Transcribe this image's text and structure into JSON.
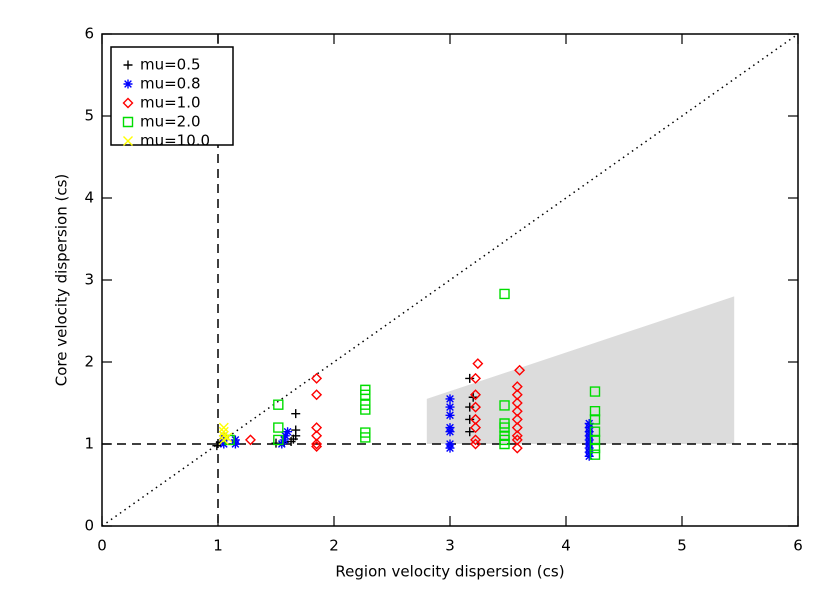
{
  "chart_data": {
    "type": "scatter",
    "xlabel": "Region velocity dispersion (cs)",
    "ylabel": "Core velocity dispersion (cs)",
    "xlim": [
      0,
      6
    ],
    "ylim": [
      0,
      6
    ],
    "xticks": [
      0,
      1,
      2,
      3,
      4,
      5,
      6
    ],
    "yticks": [
      0,
      1,
      2,
      3,
      4,
      5,
      6
    ],
    "legend": "upper left",
    "reference_lines": {
      "hline": 1,
      "vline": 1
    },
    "region": {
      "color": "#dcdcdc",
      "x": [
        2.8,
        5.45,
        5.45,
        2.8
      ],
      "y": [
        1.55,
        2.8,
        1.0,
        1.0
      ]
    },
    "series": [
      {
        "name": "mu=0.5",
        "color": "#000000",
        "marker": "plus",
        "x": [
          0.99,
          1.02,
          1.5,
          1.57,
          1.63,
          1.65,
          1.67,
          1.67,
          1.67,
          3.17,
          3.17,
          3.17,
          3.2,
          3.17,
          4.22
        ],
        "values": [
          0.98,
          1.02,
          1.01,
          1.02,
          1.03,
          1.06,
          1.1,
          1.17,
          1.37,
          1.15,
          1.3,
          1.45,
          1.57,
          1.8,
          1.0
        ]
      },
      {
        "name": "mu=0.8",
        "color": "#0000ff",
        "marker": "asterisk",
        "x": [
          1.05,
          1.05,
          1.05,
          1.15,
          1.15,
          1.55,
          1.57,
          1.58,
          1.6,
          3.0,
          3.0,
          3.0,
          3.0,
          3.0,
          3.0,
          3.0,
          4.2,
          4.2,
          4.2,
          4.2,
          4.2,
          4.2,
          4.2,
          4.2,
          4.2
        ],
        "values": [
          1.0,
          1.05,
          1.1,
          1.0,
          1.05,
          1.0,
          1.05,
          1.1,
          1.15,
          0.95,
          1.0,
          1.15,
          1.2,
          1.35,
          1.45,
          1.55,
          0.85,
          0.9,
          0.95,
          1.0,
          1.05,
          1.1,
          1.15,
          1.2,
          1.25
        ]
      },
      {
        "name": "mu=1.0",
        "color": "#ff0000",
        "marker": "diamond",
        "x": [
          1.28,
          1.85,
          1.85,
          1.85,
          1.85,
          1.85,
          1.85,
          3.22,
          3.22,
          3.22,
          3.22,
          3.22,
          3.22,
          3.22,
          3.24,
          3.58,
          3.58,
          3.58,
          3.58,
          3.58,
          3.58,
          3.58,
          3.58,
          3.58,
          3.6
        ],
        "values": [
          1.05,
          0.97,
          1.0,
          1.1,
          1.2,
          1.6,
          1.8,
          1.0,
          1.05,
          1.2,
          1.3,
          1.45,
          1.6,
          1.8,
          1.98,
          0.95,
          1.05,
          1.1,
          1.2,
          1.3,
          1.4,
          1.5,
          1.6,
          1.7,
          1.9
        ]
      },
      {
        "name": "mu=2.0",
        "color": "#00dd00",
        "marker": "square",
        "x": [
          1.1,
          1.52,
          1.52,
          1.52,
          2.27,
          2.27,
          2.27,
          2.27,
          2.27,
          2.27,
          3.47,
          3.47,
          3.47,
          3.47,
          3.47,
          3.47,
          3.47,
          4.25,
          4.25,
          4.25,
          4.25,
          4.25,
          4.25,
          4.25
        ],
        "values": [
          1.05,
          1.05,
          1.2,
          1.48,
          1.08,
          1.14,
          1.42,
          1.48,
          1.6,
          1.66,
          1.0,
          1.05,
          1.1,
          1.2,
          1.25,
          1.47,
          2.83,
          0.87,
          0.95,
          1.05,
          1.15,
          1.3,
          1.4,
          1.64
        ]
      },
      {
        "name": "mu=10.0",
        "color": "#ffff00",
        "marker": "x",
        "x": [
          1.05,
          1.05,
          1.05,
          1.05,
          1.08
        ],
        "values": [
          1.05,
          1.1,
          1.15,
          1.2,
          1.08
        ]
      }
    ]
  }
}
